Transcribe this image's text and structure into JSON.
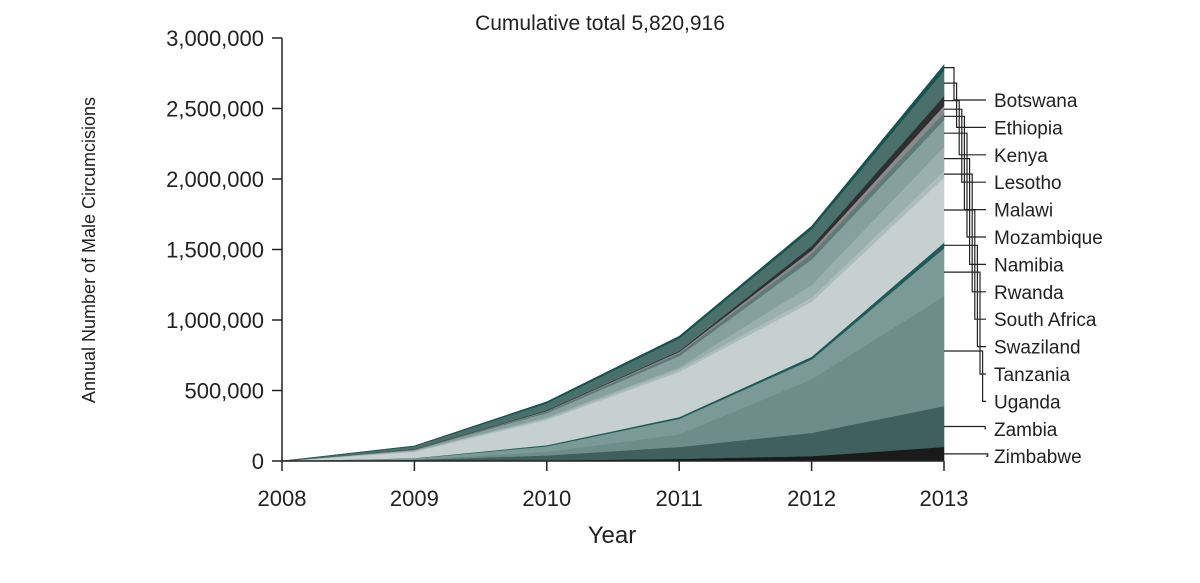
{
  "chart_data": {
    "type": "area",
    "title": "Cumulative total 5,820,916",
    "xlabel": "Year",
    "ylabel": "Annual Number of Male Circumcisions",
    "x": [
      "2008",
      "2009",
      "2010",
      "2011",
      "2012",
      "2013"
    ],
    "ylim": [
      0,
      3000000
    ],
    "yticks": [
      0,
      500000,
      1000000,
      1500000,
      2000000,
      2500000,
      3000000
    ],
    "ytick_labels": [
      "0",
      "500,000",
      "1,000,000",
      "1,500,000",
      "2,000,000",
      "2,500,000",
      "3,000,000"
    ],
    "stacked": true,
    "legend_position": "right",
    "series": [
      {
        "name": "Zimbabwe",
        "color": "#1a1a1a",
        "values": [
          0,
          1000,
          5000,
          15000,
          35000,
          100000
        ]
      },
      {
        "name": "Zambia",
        "color": "#3f605c",
        "values": [
          0,
          8000,
          35000,
          85000,
          165000,
          290000
        ]
      },
      {
        "name": "Uganda",
        "color": "#6e8c88",
        "values": [
          0,
          2000,
          25000,
          90000,
          380000,
          780000
        ]
      },
      {
        "name": "Tanzania",
        "color": "#7b9995",
        "values": [
          0,
          8000,
          40000,
          110000,
          140000,
          340000
        ]
      },
      {
        "name": "Swaziland",
        "color": "#1e5b58",
        "values": [
          0,
          2000,
          8000,
          12000,
          20000,
          40000
        ]
      },
      {
        "name": "South Africa",
        "color": "#c6d0cf",
        "values": [
          0,
          45000,
          180000,
          320000,
          390000,
          460000
        ]
      },
      {
        "name": "Rwanda",
        "color": "#aebcbb",
        "values": [
          0,
          5000,
          10000,
          18000,
          30000,
          50000
        ]
      },
      {
        "name": "Namibia",
        "color": "#9ab0ae",
        "values": [
          0,
          3000,
          8000,
          15000,
          90000,
          170000
        ]
      },
      {
        "name": "Mozambique",
        "color": "#86a09d",
        "values": [
          0,
          5000,
          30000,
          80000,
          180000,
          190000
        ]
      },
      {
        "name": "Malawi",
        "color": "#5e7b78",
        "values": [
          0,
          3000,
          10000,
          20000,
          40000,
          50000
        ]
      },
      {
        "name": "Lesotho",
        "color": "#8a8a8a",
        "values": [
          0,
          1000,
          5000,
          10000,
          25000,
          50000
        ]
      },
      {
        "name": "Kenya",
        "color": "#2f2f2f",
        "values": [
          0,
          2000,
          4000,
          6000,
          30000,
          70000
        ]
      },
      {
        "name": "Ethiopia",
        "color": "#4b706c",
        "values": [
          0,
          20000,
          50000,
          90000,
          120000,
          180000
        ]
      },
      {
        "name": "Botswana",
        "color": "#15534f",
        "values": [
          0,
          2000,
          10000,
          14000,
          20000,
          40000
        ]
      }
    ]
  }
}
